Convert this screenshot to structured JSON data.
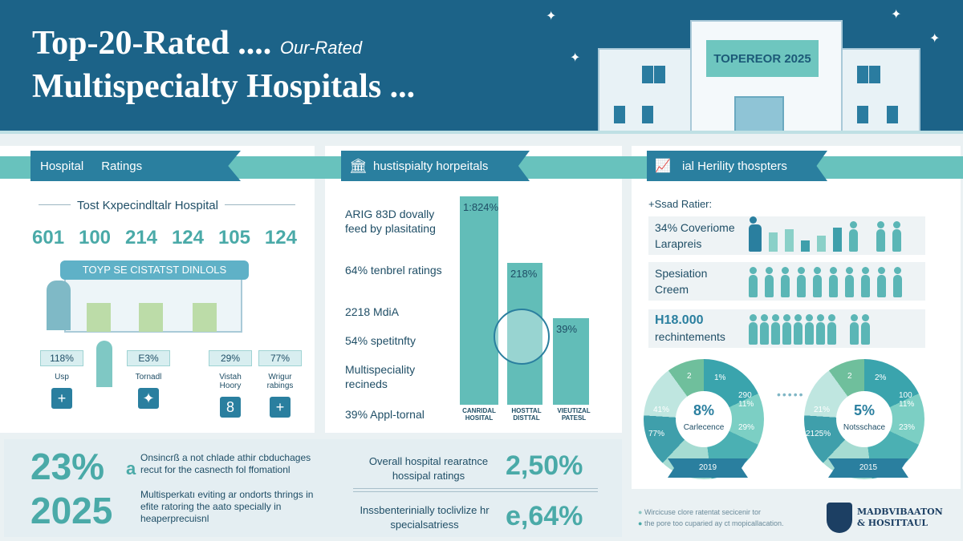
{
  "header": {
    "title_line1": "Top-20-Rated ....",
    "title_suffix": "Our-Rated",
    "title_line2": "Multispecialty Hospitals ...",
    "building_sign": "TOPEREOR 2025"
  },
  "colors": {
    "header": "#1c6388",
    "teal": "#62bdb8",
    "dark_teal": "#2a7f9f"
  },
  "left": {
    "ribbon_a": "Hospital",
    "ribbon_b": "Ratings",
    "subtitle": "Tost Kxpecindltalr Hospital",
    "numbers": [
      "601",
      "100",
      "214",
      "124",
      "105",
      "124"
    ],
    "banner": "TOYP SE CISTATST DINLOLS",
    "tags": [
      {
        "pct": "118%",
        "label": "Usp",
        "icon": "+"
      },
      {
        "pct": "E3%",
        "label": "Tornadl",
        "icon": "✦"
      },
      {
        "pct": "29%",
        "label": "Vistah Hoory",
        "icon": "8"
      },
      {
        "pct": "77%",
        "label": "Wrigur rabings",
        "icon": "+"
      }
    ]
  },
  "middle": {
    "ribbon": "hustispialty horpeitals",
    "items": [
      "ARIG 83D dovally feed by plasitating",
      "64% tenbrel ratings",
      "2218 MdiA",
      "54% spetitnfty",
      "Multispeciality recineds",
      "39% Appl-tornal"
    ],
    "bars": [
      {
        "label": "1:824%",
        "category": "CANRIDAL HOSITAL"
      },
      {
        "label": "218%",
        "category": "HOSTTAL DISTTAL"
      },
      {
        "label": "39%",
        "category": "VIEUTIZAL PATESL"
      }
    ]
  },
  "right": {
    "ribbon": "ial Herility thospters",
    "heading": "+Ssad Ratier:",
    "rows": [
      {
        "line1": "34% Coveriome",
        "line2": "Larapreis"
      },
      {
        "line1": "Spesiation",
        "line2": "Creem"
      },
      {
        "line1": "H18.000",
        "line2": "rechintements"
      }
    ],
    "donuts": [
      {
        "center": "8%",
        "caption": "Carlecence",
        "year": "2019",
        "segments": [
          "1%",
          "290 11%",
          "29%",
          "77%",
          "41%",
          "2"
        ]
      },
      {
        "center": "5%",
        "caption": "Notsschace",
        "year": "2015",
        "segments": [
          "2%",
          "100 11%",
          "23%",
          "2125%",
          "21%",
          "2"
        ]
      }
    ]
  },
  "bottom": {
    "stat1": "23%",
    "stat1_suffix": "a",
    "text1": "Onsincrß a not chlade athir cbduchages recut for the casnecth fol ffomationl",
    "stat2": "2025",
    "text2": "Multisperkatı eviting ar ondorts thrings in efite ratoring the aato specially in heaperprecuisnl",
    "kpi1_label": "Overall hospital rearatnce hossipal ratings",
    "kpi1_value": "2,50%",
    "kpi2_label": "Inssbenterinially toclivlize hr specialsatriess",
    "kpi2_value": "e,64%"
  },
  "footer": {
    "note1": "Wircicuse clore ratentat secicenir tor",
    "note2": "the pore too cuparied ay ct mopicallacation.",
    "logo_line1": "MADBVIBAATON",
    "logo_line2": "& HOSITTAUL"
  }
}
